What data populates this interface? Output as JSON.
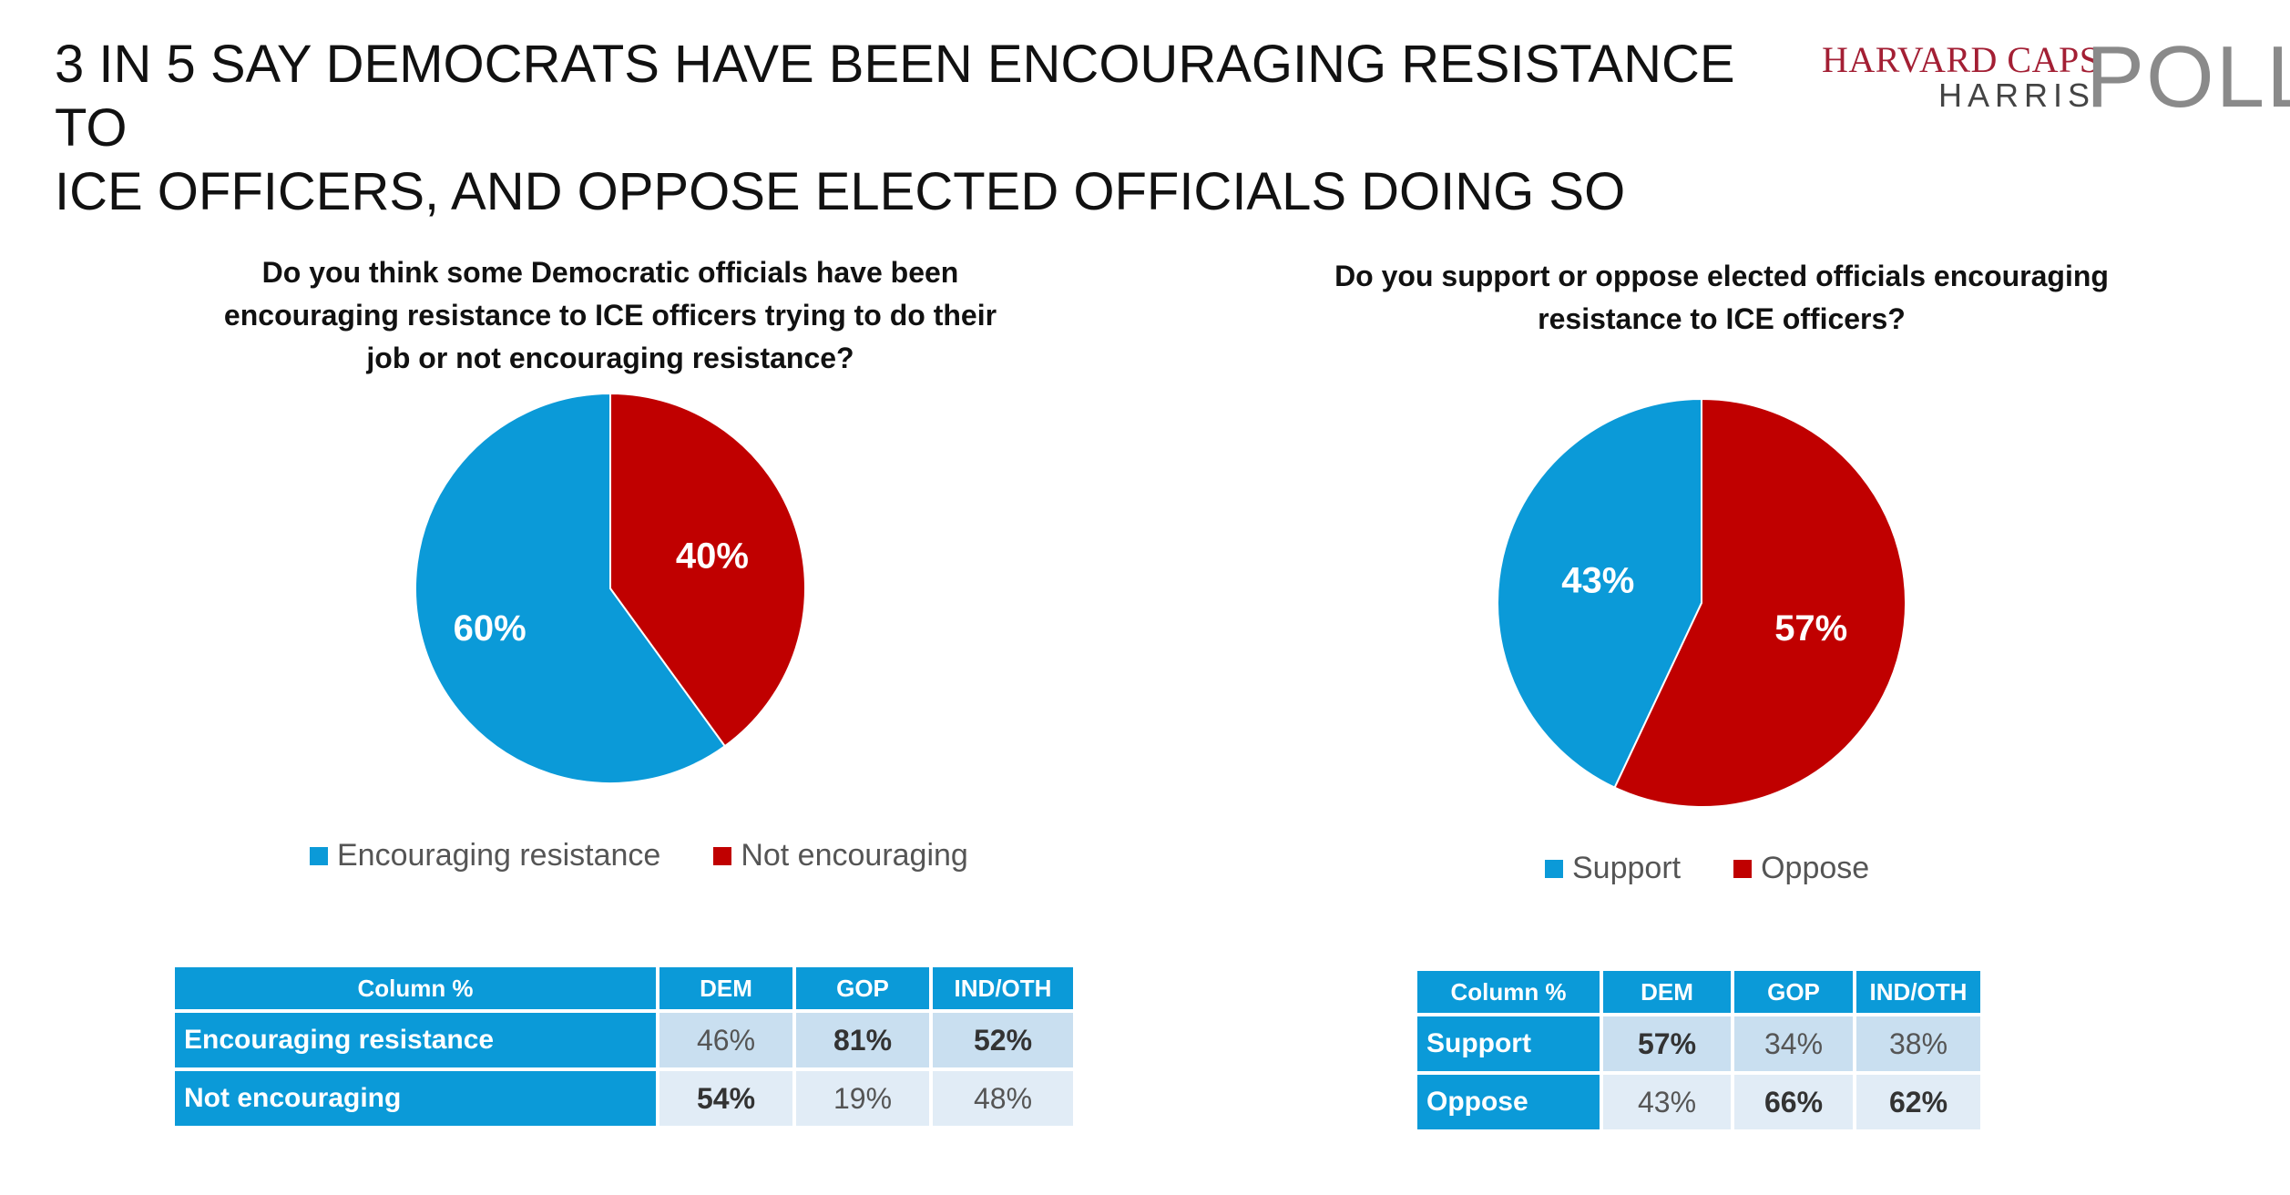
{
  "headline": {
    "line1": "3 IN 5 SAY DEMOCRATS HAVE BEEN ENCOURAGING RESISTANCE TO",
    "line2": "ICE OFFICERS, AND OPPOSE ELECTED OFFICIALS DOING SO"
  },
  "logo": {
    "harvard_caps": "HARVARD CAPS",
    "harris": "HARRIS",
    "poll": "POLL"
  },
  "colors": {
    "blue": "#0b9ad8",
    "red": "#c00000",
    "header": "#0b9ad8"
  },
  "chart_data": [
    {
      "type": "pie",
      "title": "Do you think some Democratic officials have been encouraging resistance to ICE officers trying to do their job or not encouraging resistance?",
      "title_lines": [
        "Do you think some Democratic officials have been",
        "encouraging resistance to ICE officers trying to do their",
        "job or not encouraging resistance?"
      ],
      "categories": [
        "Encouraging resistance",
        "Not encouraging"
      ],
      "values": [
        60,
        40
      ],
      "labels": [
        "60%",
        "40%"
      ],
      "colors": [
        "#0b9ad8",
        "#c00000"
      ],
      "legend_position": "bottom"
    },
    {
      "type": "pie",
      "title": "Do you support or oppose elected officials encouraging resistance to ICE officers?",
      "title_lines": [
        "Do you support or oppose elected officials encouraging",
        "resistance to ICE officers?"
      ],
      "categories": [
        "Support",
        "Oppose"
      ],
      "values": [
        43,
        57
      ],
      "labels": [
        "43%",
        "57%"
      ],
      "colors": [
        "#0b9ad8",
        "#c00000"
      ],
      "legend_position": "bottom"
    }
  ],
  "tables": [
    {
      "headers": [
        "Column %",
        "DEM",
        "GOP",
        "IND/OTH"
      ],
      "rows": [
        {
          "label": "Encouraging resistance",
          "values": [
            "46%",
            "81%",
            "52%"
          ]
        },
        {
          "label": "Not encouraging",
          "values": [
            "54%",
            "19%",
            "48%"
          ]
        }
      ]
    },
    {
      "headers": [
        "Column %",
        "DEM",
        "GOP",
        "IND/OTH"
      ],
      "rows": [
        {
          "label": "Support",
          "values": [
            "57%",
            "34%",
            "38%"
          ]
        },
        {
          "label": "Oppose",
          "values": [
            "43%",
            "66%",
            "62%"
          ]
        }
      ]
    }
  ]
}
